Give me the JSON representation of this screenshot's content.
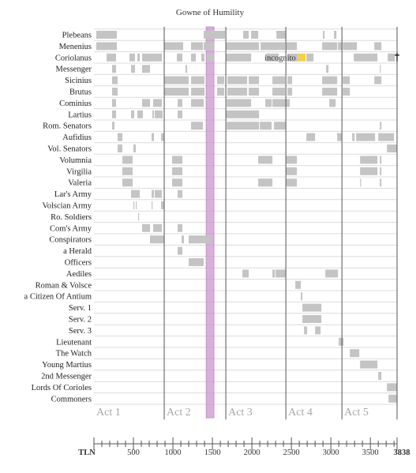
{
  "chart_data": {
    "type": "timeline",
    "title": "Gowne of Humility",
    "x_range": [
      0,
      3838
    ],
    "x_ticks": [
      {
        "value": 0,
        "label": "TLN"
      },
      {
        "value": 500,
        "label": "500"
      },
      {
        "value": 1000,
        "label": "1000"
      },
      {
        "value": 1500,
        "label": "1500"
      },
      {
        "value": 2000,
        "label": "2000"
      },
      {
        "value": 2500,
        "label": "2500"
      },
      {
        "value": 3000,
        "label": "3000"
      },
      {
        "value": 3500,
        "label": "3500"
      },
      {
        "value": 3838,
        "label": "3838"
      }
    ],
    "acts": [
      {
        "label": "Act 1",
        "start": 0
      },
      {
        "label": "Act 2",
        "start": 890
      },
      {
        "label": "Act 3",
        "start": 1670
      },
      {
        "label": "Act 4",
        "start": 2430
      },
      {
        "label": "Act 5",
        "start": 3140
      }
    ],
    "highlight_band": {
      "start": 1420,
      "end": 1520,
      "color": "#c98ecb"
    },
    "annotation": {
      "text": "incognito",
      "row": "Coriolanus",
      "at": 2160
    },
    "bar_color": "#c4c4c4",
    "accent_color": "#f2d24a",
    "rows": [
      {
        "name": "Plebeans",
        "spans": [
          [
            30,
            290
          ],
          [
            1390,
            1660
          ],
          [
            1890,
            1960
          ],
          [
            1990,
            2080
          ],
          [
            2310,
            2430
          ],
          [
            2900,
            2920
          ],
          [
            3040,
            3070
          ]
        ]
      },
      {
        "name": "Menenius",
        "spans": [
          [
            30,
            290
          ],
          [
            890,
            1130
          ],
          [
            1230,
            1380
          ],
          [
            1390,
            1520
          ],
          [
            1670,
            2090
          ],
          [
            2110,
            2420
          ],
          [
            2430,
            2570
          ],
          [
            2890,
            3080
          ],
          [
            3090,
            3140
          ],
          [
            3150,
            3330
          ],
          [
            3550,
            3640
          ]
        ]
      },
      {
        "name": "Coriolanus",
        "spans": [
          [
            160,
            280
          ],
          [
            450,
            520
          ],
          [
            550,
            580
          ],
          [
            610,
            860
          ],
          [
            1050,
            1120
          ],
          [
            1230,
            1290
          ],
          [
            1360,
            1400
          ],
          [
            1430,
            1520
          ],
          [
            1670,
            1990
          ],
          [
            2180,
            2340
          ],
          [
            2450,
            2580
          ],
          [
            2580,
            2680,
            "accent"
          ],
          [
            2690,
            2780
          ],
          [
            3290,
            3590
          ],
          [
            3720,
            3810
          ]
        ]
      },
      {
        "name": "Messenger",
        "spans": [
          [
            230,
            280
          ],
          [
            470,
            520
          ],
          [
            610,
            710
          ],
          [
            1160,
            1180
          ],
          [
            2940,
            2970
          ],
          [
            3620,
            3630
          ]
        ]
      },
      {
        "name": "Sicinius",
        "spans": [
          [
            230,
            300
          ],
          [
            890,
            1200
          ],
          [
            1230,
            1400
          ],
          [
            1560,
            1650
          ],
          [
            1690,
            1940
          ],
          [
            1960,
            2090
          ],
          [
            2260,
            2420
          ],
          [
            2450,
            2510
          ],
          [
            2890,
            3080
          ],
          [
            3150,
            3240
          ],
          [
            3550,
            3640
          ]
        ]
      },
      {
        "name": "Brutus",
        "spans": [
          [
            230,
            300
          ],
          [
            890,
            1200
          ],
          [
            1230,
            1400
          ],
          [
            1560,
            1650
          ],
          [
            1690,
            1940
          ],
          [
            1960,
            2090
          ],
          [
            2260,
            2420
          ],
          [
            2450,
            2510
          ],
          [
            2890,
            3080
          ],
          [
            3150,
            3240
          ]
        ]
      },
      {
        "name": "Cominius",
        "spans": [
          [
            230,
            280
          ],
          [
            610,
            710
          ],
          [
            750,
            860
          ],
          [
            1060,
            1120
          ],
          [
            1230,
            1390
          ],
          [
            1680,
            1990
          ],
          [
            2170,
            2250
          ],
          [
            2260,
            2480
          ],
          [
            2980,
            3060
          ]
        ]
      },
      {
        "name": "Lartius",
        "spans": [
          [
            230,
            280
          ],
          [
            470,
            510
          ],
          [
            550,
            620
          ],
          [
            740,
            760
          ],
          [
            770,
            870
          ],
          [
            1060,
            1120
          ],
          [
            1670,
            2090
          ]
        ]
      },
      {
        "name": "Rom. Senators",
        "spans": [
          [
            230,
            260
          ],
          [
            1230,
            1380
          ],
          [
            1680,
            2090
          ],
          [
            2100,
            2250
          ],
          [
            2280,
            2430
          ],
          [
            3620,
            3640
          ]
        ]
      },
      {
        "name": "Aufidius",
        "spans": [
          [
            300,
            360
          ],
          [
            730,
            760
          ],
          [
            850,
            890
          ],
          [
            2690,
            2800
          ],
          [
            3080,
            3140
          ],
          [
            3270,
            3300
          ],
          [
            3320,
            3560
          ],
          [
            3600,
            3800
          ]
        ]
      },
      {
        "name": "Vol. Senators",
        "spans": [
          [
            300,
            360
          ],
          [
            500,
            530
          ],
          [
            3710,
            3838
          ]
        ]
      },
      {
        "name": "Volumnia",
        "spans": [
          [
            360,
            490
          ],
          [
            990,
            1120
          ],
          [
            2080,
            2260
          ],
          [
            2430,
            2570
          ],
          [
            3370,
            3590
          ],
          [
            3620,
            3640
          ]
        ]
      },
      {
        "name": "Virgilia",
        "spans": [
          [
            360,
            490
          ],
          [
            990,
            1120
          ],
          [
            2430,
            2570
          ],
          [
            3370,
            3590
          ],
          [
            3620,
            3640
          ]
        ]
      },
      {
        "name": "Valeria",
        "spans": [
          [
            360,
            490
          ],
          [
            990,
            1120
          ],
          [
            2080,
            2260
          ],
          [
            2430,
            2570
          ],
          [
            3370,
            3380
          ],
          [
            3620,
            3640
          ]
        ]
      },
      {
        "name": "Lar's Army",
        "spans": [
          [
            470,
            580
          ],
          [
            730,
            760
          ],
          [
            770,
            860
          ],
          [
            1060,
            1120
          ]
        ]
      },
      {
        "name": "Volscian Army",
        "spans": [
          [
            500,
            510
          ],
          [
            530,
            540
          ],
          [
            730,
            740
          ],
          [
            850,
            890
          ]
        ]
      },
      {
        "name": "Ro. Soldiers",
        "spans": [
          [
            560,
            570
          ]
        ]
      },
      {
        "name": "Com's Army",
        "spans": [
          [
            610,
            710
          ],
          [
            750,
            860
          ],
          [
            1060,
            1120
          ]
        ]
      },
      {
        "name": "Conspirators",
        "spans": [
          [
            710,
            890
          ],
          [
            1110,
            1140
          ],
          [
            1200,
            1420
          ],
          [
            1420,
            1480
          ]
        ]
      },
      {
        "name": "a Herald",
        "spans": [
          [
            1060,
            1120
          ]
        ]
      },
      {
        "name": "Officers",
        "spans": [
          [
            1200,
            1390
          ]
        ]
      },
      {
        "name": "Aediles",
        "spans": [
          [
            1880,
            1960
          ],
          [
            2260,
            2290
          ],
          [
            2300,
            2430
          ],
          [
            2930,
            3090
          ]
        ]
      },
      {
        "name": "Roman & Volsce",
        "spans": [
          [
            2550,
            2620
          ]
        ]
      },
      {
        "name": "a Citizen Of Antium",
        "spans": [
          [
            2620,
            2640
          ]
        ]
      },
      {
        "name": "Serv. 1",
        "spans": [
          [
            2640,
            2880
          ]
        ]
      },
      {
        "name": "Serv. 2",
        "spans": [
          [
            2640,
            2880
          ]
        ]
      },
      {
        "name": "Serv. 3",
        "spans": [
          [
            2660,
            2700
          ],
          [
            2800,
            2870
          ]
        ]
      },
      {
        "name": "Lieutenant",
        "spans": [
          [
            3100,
            3160
          ]
        ]
      },
      {
        "name": "The Watch",
        "spans": [
          [
            3240,
            3360
          ]
        ]
      },
      {
        "name": "Young Martius",
        "spans": [
          [
            3370,
            3590
          ]
        ]
      },
      {
        "name": "2nd Messenger",
        "spans": [
          [
            3600,
            3640
          ]
        ]
      },
      {
        "name": "Lords Of Corioles",
        "spans": [
          [
            3710,
            3838
          ]
        ]
      },
      {
        "name": "Commoners",
        "spans": [
          [
            3730,
            3838
          ]
        ]
      }
    ]
  }
}
